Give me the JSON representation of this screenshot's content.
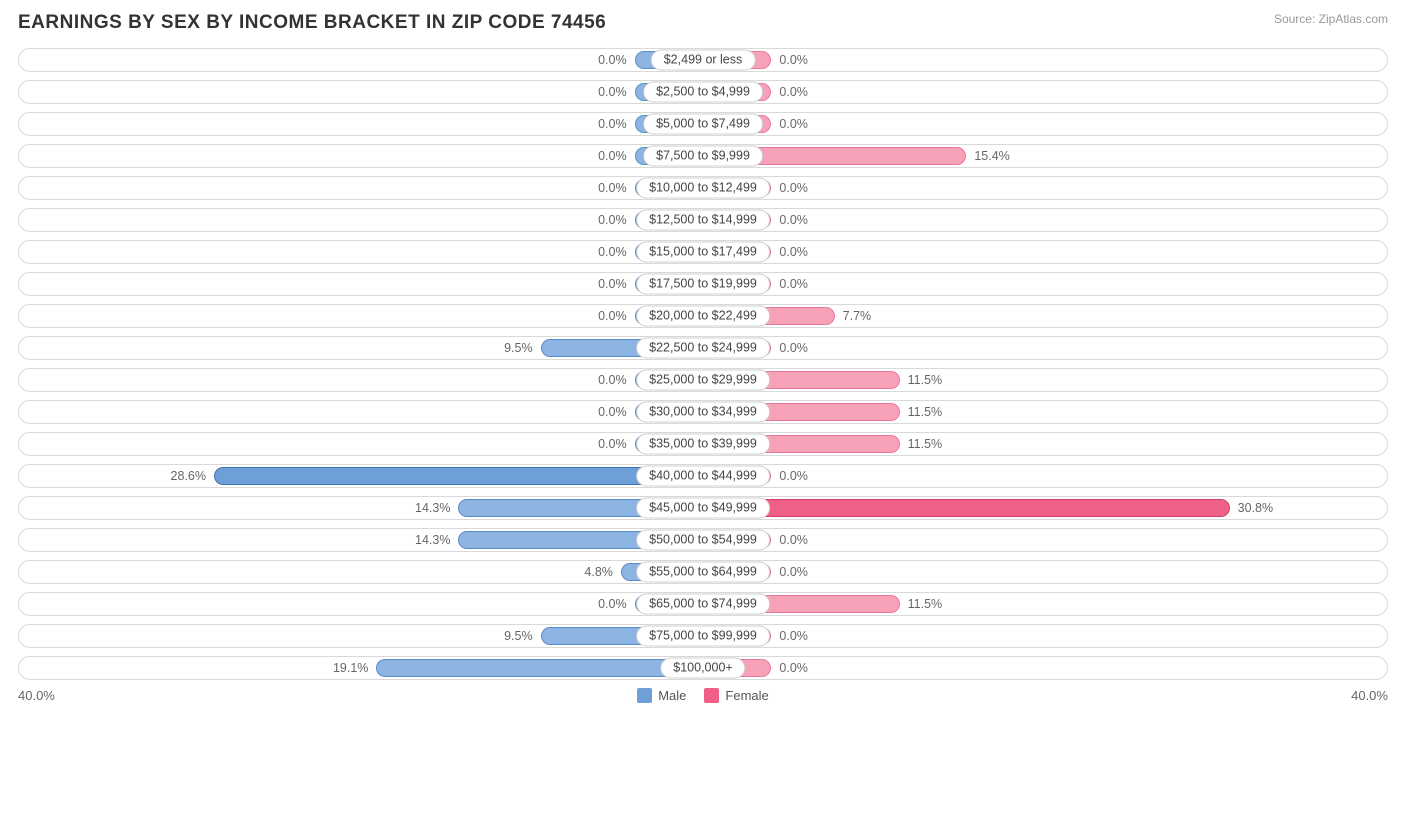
{
  "title": "EARNINGS BY SEX BY INCOME BRACKET IN ZIP CODE 74456",
  "source": "Source: ZipAtlas.com",
  "chart": {
    "type": "diverging-bar",
    "axis_max_percent": 40.0,
    "axis_label_left": "40.0%",
    "axis_label_right": "40.0%",
    "min_bar_percent": 4.0,
    "row_border_color": "#d9d9d9",
    "background_color": "#ffffff",
    "label_pill_border": "#cfcfcf",
    "value_text_color": "#666666",
    "male": {
      "label": "Male",
      "swatch_color": "#6f9fd8",
      "bar_fill": "#8db4e2",
      "bar_border": "#5a8bc9",
      "highlight_fill": "#6f9fd8",
      "highlight_border": "#3f74b7"
    },
    "female": {
      "label": "Female",
      "swatch_color": "#ef5f86",
      "bar_fill": "#f7a1b8",
      "bar_border": "#e87a99",
      "highlight_fill": "#ef5f86",
      "highlight_border": "#d63f6a"
    },
    "rows": [
      {
        "label": "$2,499 or less",
        "male": 0.0,
        "female": 0.0
      },
      {
        "label": "$2,500 to $4,999",
        "male": 0.0,
        "female": 0.0
      },
      {
        "label": "$5,000 to $7,499",
        "male": 0.0,
        "female": 0.0
      },
      {
        "label": "$7,500 to $9,999",
        "male": 0.0,
        "female": 15.4
      },
      {
        "label": "$10,000 to $12,499",
        "male": 0.0,
        "female": 0.0
      },
      {
        "label": "$12,500 to $14,999",
        "male": 0.0,
        "female": 0.0
      },
      {
        "label": "$15,000 to $17,499",
        "male": 0.0,
        "female": 0.0
      },
      {
        "label": "$17,500 to $19,999",
        "male": 0.0,
        "female": 0.0
      },
      {
        "label": "$20,000 to $22,499",
        "male": 0.0,
        "female": 7.7
      },
      {
        "label": "$22,500 to $24,999",
        "male": 9.5,
        "female": 0.0
      },
      {
        "label": "$25,000 to $29,999",
        "male": 0.0,
        "female": 11.5
      },
      {
        "label": "$30,000 to $34,999",
        "male": 0.0,
        "female": 11.5
      },
      {
        "label": "$35,000 to $39,999",
        "male": 0.0,
        "female": 11.5
      },
      {
        "label": "$40,000 to $44,999",
        "male": 28.6,
        "female": 0.0
      },
      {
        "label": "$45,000 to $49,999",
        "male": 14.3,
        "female": 30.8
      },
      {
        "label": "$50,000 to $54,999",
        "male": 14.3,
        "female": 0.0
      },
      {
        "label": "$55,000 to $64,999",
        "male": 4.8,
        "female": 0.0
      },
      {
        "label": "$65,000 to $74,999",
        "male": 0.0,
        "female": 11.5
      },
      {
        "label": "$75,000 to $99,999",
        "male": 9.5,
        "female": 0.0
      },
      {
        "label": "$100,000+",
        "male": 19.1,
        "female": 0.0
      }
    ]
  }
}
